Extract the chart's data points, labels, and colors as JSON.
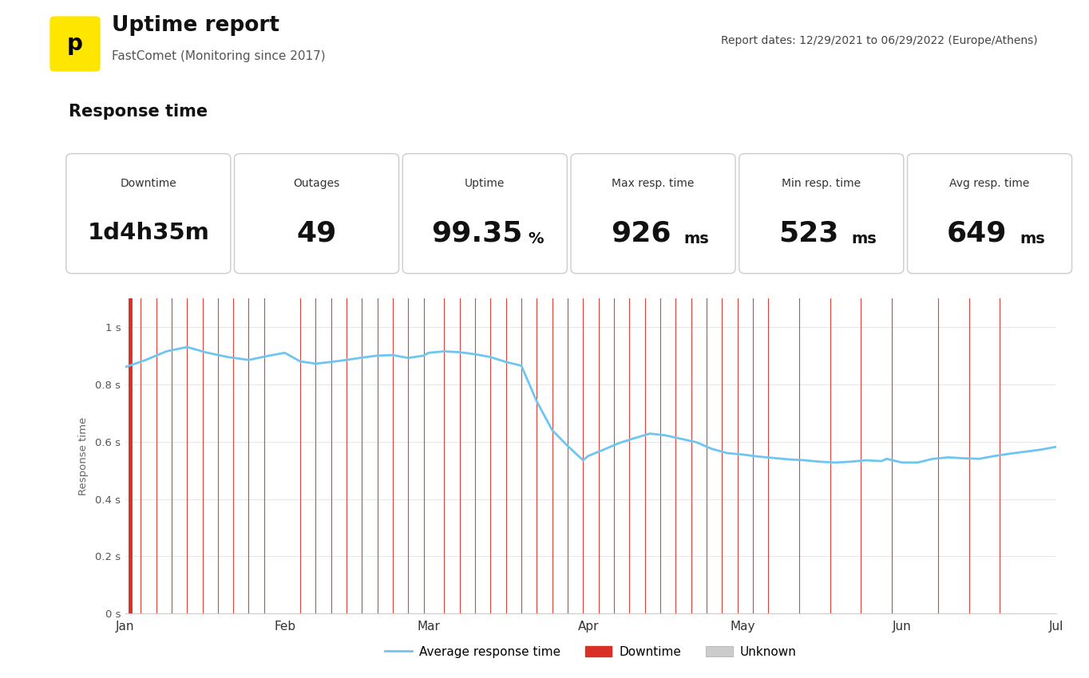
{
  "title": "Uptime report",
  "subtitle": "FastComet (Monitoring since 2017)",
  "report_dates": "Report dates: 12/29/2021 to 06/29/2022 (Europe/Athens)",
  "section_title": "Response time",
  "stats": [
    {
      "label": "Downtime",
      "value": "1d4h35m"
    },
    {
      "label": "Outages",
      "value": "49"
    },
    {
      "label": "Uptime",
      "value": "99.35%"
    },
    {
      "label": "Max resp. time",
      "value": "926ms"
    },
    {
      "label": "Min resp. time",
      "value": "523ms"
    },
    {
      "label": "Avg resp. time",
      "value": "649ms"
    }
  ],
  "background_color": "#ffffff",
  "card_bg": "#ffffff",
  "card_border": "#cccccc",
  "line_color": "#6ec6f0",
  "fill_color": "#dff2fc",
  "downtime_color": "#d93025",
  "unknown_color": "#cccccc",
  "ylabel": "Response time",
  "yticks": [
    0.0,
    0.2,
    0.4,
    0.6,
    0.8,
    1.0
  ],
  "ytick_labels": [
    "0 s",
    "0.2 s",
    "0.4 s",
    "0.6 s",
    "0.8 s",
    "1 s"
  ],
  "xtick_labels": [
    "Jan",
    "Feb",
    "Mar",
    "Apr",
    "May",
    "Jun",
    "Jul"
  ],
  "x_positions": [
    0,
    31,
    59,
    90,
    120,
    151,
    181
  ],
  "curve_x": [
    0,
    4,
    8,
    12,
    16,
    20,
    24,
    28,
    31,
    34,
    37,
    40,
    43,
    46,
    49,
    52,
    55,
    58,
    59,
    62,
    65,
    68,
    71,
    74,
    77,
    80,
    83,
    86,
    89,
    90,
    93,
    96,
    99,
    102,
    105,
    108,
    111,
    114,
    117,
    120,
    123,
    126,
    129,
    132,
    135,
    138,
    141,
    144,
    147,
    148,
    151,
    154,
    157,
    160,
    163,
    166,
    169,
    172,
    175,
    178,
    181
  ],
  "curve_y": [
    0.86,
    0.885,
    0.915,
    0.93,
    0.91,
    0.895,
    0.885,
    0.9,
    0.91,
    0.88,
    0.872,
    0.878,
    0.885,
    0.893,
    0.9,
    0.902,
    0.892,
    0.9,
    0.91,
    0.915,
    0.912,
    0.905,
    0.895,
    0.878,
    0.865,
    0.74,
    0.64,
    0.585,
    0.535,
    0.55,
    0.572,
    0.595,
    0.612,
    0.628,
    0.622,
    0.61,
    0.598,
    0.575,
    0.56,
    0.555,
    0.548,
    0.543,
    0.538,
    0.535,
    0.53,
    0.527,
    0.53,
    0.535,
    0.532,
    0.54,
    0.527,
    0.527,
    0.54,
    0.545,
    0.542,
    0.54,
    0.55,
    0.558,
    0.565,
    0.572,
    0.582
  ],
  "downtime_lines_thin": [
    3,
    6,
    9,
    12,
    15,
    18,
    21,
    24,
    27,
    34,
    37,
    40,
    43,
    46,
    49,
    52,
    55,
    58,
    62,
    65,
    68,
    71,
    74,
    77,
    80,
    83,
    86,
    89,
    92,
    95,
    98,
    101,
    104,
    107,
    110,
    113,
    116,
    119,
    122,
    125,
    131,
    137,
    143,
    149,
    158,
    164,
    170
  ],
  "downtime_lines_thick": [
    1
  ],
  "legend_avg": "Average response time",
  "legend_down": "Downtime",
  "legend_unknown": "Unknown"
}
